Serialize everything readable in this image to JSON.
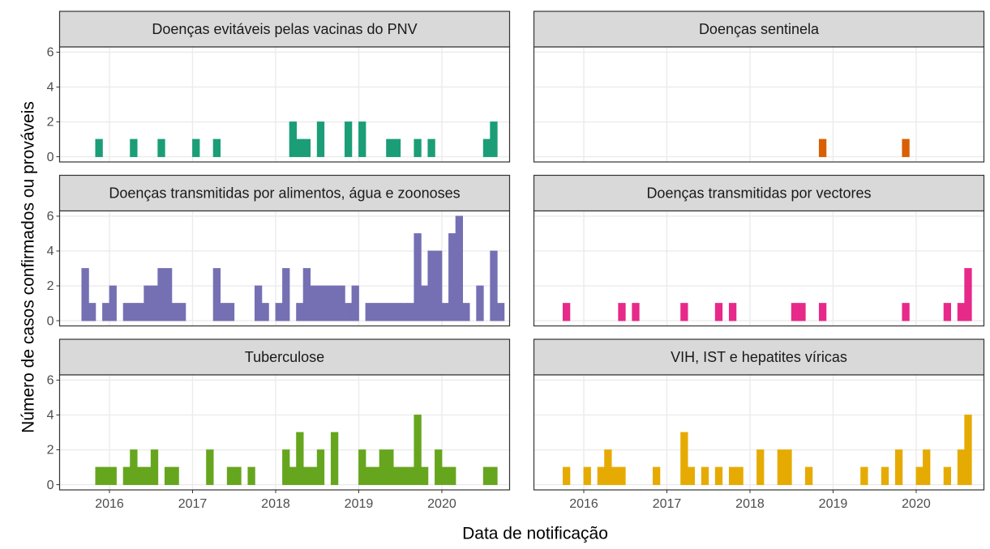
{
  "chart_data": {
    "type": "bar",
    "xlabel": "Data de notificação",
    "ylabel": "Número de casos confirmados ou prováveis",
    "x": [
      2015.667,
      2015.75,
      2015.833,
      2015.917,
      2016,
      2016.083,
      2016.167,
      2016.25,
      2016.333,
      2016.417,
      2016.5,
      2016.583,
      2016.667,
      2016.75,
      2016.833,
      2016.917,
      2017,
      2017.083,
      2017.167,
      2017.25,
      2017.333,
      2017.417,
      2017.5,
      2017.583,
      2017.667,
      2017.75,
      2017.833,
      2017.917,
      2018,
      2018.083,
      2018.167,
      2018.25,
      2018.333,
      2018.417,
      2018.5,
      2018.583,
      2018.667,
      2018.75,
      2018.833,
      2018.917,
      2019,
      2019.083,
      2019.167,
      2019.25,
      2019.333,
      2019.417,
      2019.5,
      2019.583,
      2019.667,
      2019.75,
      2019.833,
      2019.917,
      2020,
      2020.083,
      2020.167,
      2020.25,
      2020.333,
      2020.417,
      2020.5,
      2020.583,
      2020.667
    ],
    "xlim": [
      2015.4,
      2020.815
    ],
    "xticks": [
      2016,
      2017,
      2018,
      2019,
      2020
    ],
    "ylim": [
      -0.3,
      6.3
    ],
    "yticks": [
      0,
      2,
      4,
      6
    ],
    "grid": true,
    "series": [
      {
        "name": "Doenças evitáveis pelas vacinas do PNV",
        "color": "#1b9e77",
        "values": [
          0,
          0,
          1,
          0,
          0,
          0,
          0,
          1,
          0,
          0,
          0,
          1,
          0,
          0,
          0,
          0,
          1,
          0,
          0,
          1,
          0,
          0,
          0,
          0,
          0,
          0,
          0,
          0,
          0,
          0,
          2,
          1,
          1,
          0,
          2,
          0,
          0,
          0,
          2,
          0,
          2,
          0,
          0,
          0,
          1,
          1,
          0,
          0,
          1,
          0,
          1,
          0,
          0,
          0,
          0,
          0,
          0,
          0,
          1,
          2,
          0
        ]
      },
      {
        "name": "Doenças sentinela",
        "color": "#d95f02",
        "values": [
          0,
          0,
          0,
          0,
          0,
          0,
          0,
          0,
          0,
          0,
          0,
          0,
          0,
          0,
          0,
          0,
          0,
          0,
          0,
          0,
          0,
          0,
          0,
          0,
          0,
          0,
          0,
          0,
          0,
          0,
          0,
          0,
          0,
          0,
          0,
          0,
          0,
          0,
          1,
          0,
          0,
          0,
          0,
          0,
          0,
          0,
          0,
          0,
          0,
          0,
          1,
          0,
          0,
          0,
          0,
          0,
          0,
          0,
          0,
          0,
          0
        ]
      },
      {
        "name": "Doenças transmitidas por alimentos, água e zoonoses",
        "color": "#7570b3",
        "values": [
          3,
          1,
          0,
          1,
          2,
          0,
          1,
          1,
          1,
          2,
          2,
          3,
          3,
          1,
          1,
          0,
          0,
          0,
          0,
          3,
          1,
          1,
          0,
          0,
          0,
          2,
          1,
          0,
          1,
          3,
          0,
          1,
          3,
          2,
          2,
          2,
          2,
          2,
          1,
          2,
          0,
          1,
          1,
          1,
          1,
          1,
          1,
          1,
          5,
          2,
          4,
          4,
          1,
          5,
          6,
          1,
          0,
          2,
          0,
          4,
          1
        ]
      },
      {
        "name": "Doenças transmitidas por vectores",
        "color": "#e7298a",
        "values": [
          0,
          1,
          0,
          0,
          0,
          0,
          0,
          0,
          0,
          1,
          0,
          1,
          0,
          0,
          0,
          0,
          0,
          0,
          1,
          0,
          0,
          0,
          0,
          1,
          0,
          1,
          0,
          0,
          0,
          0,
          0,
          0,
          0,
          0,
          1,
          1,
          0,
          0,
          1,
          0,
          0,
          0,
          0,
          0,
          0,
          0,
          0,
          0,
          0,
          0,
          1,
          0,
          0,
          0,
          0,
          0,
          1,
          0,
          1,
          3,
          0
        ]
      },
      {
        "name": "Tuberculose",
        "color": "#66a61e",
        "values": [
          0,
          0,
          1,
          1,
          1,
          0,
          1,
          2,
          1,
          1,
          2,
          0,
          1,
          1,
          0,
          0,
          0,
          0,
          2,
          0,
          0,
          1,
          1,
          0,
          1,
          0,
          0,
          0,
          0,
          2,
          1,
          3,
          1,
          1,
          2,
          0,
          3,
          0,
          0,
          0,
          2,
          1,
          1,
          2,
          2,
          1,
          1,
          1,
          4,
          1,
          0,
          2,
          1,
          1,
          0,
          0,
          0,
          0,
          1,
          1,
          0
        ]
      },
      {
        "name": "VIH, IST e hepatites víricas",
        "color": "#e6ab02",
        "values": [
          0,
          1,
          0,
          0,
          1,
          0,
          1,
          2,
          1,
          1,
          0,
          0,
          0,
          0,
          1,
          0,
          0,
          0,
          3,
          1,
          0,
          1,
          0,
          1,
          0,
          1,
          1,
          0,
          0,
          2,
          0,
          0,
          2,
          2,
          0,
          0,
          1,
          0,
          0,
          0,
          0,
          0,
          0,
          0,
          1,
          0,
          0,
          1,
          0,
          2,
          0,
          0,
          1,
          2,
          0,
          0,
          1,
          0,
          2,
          4,
          0
        ]
      }
    ]
  }
}
